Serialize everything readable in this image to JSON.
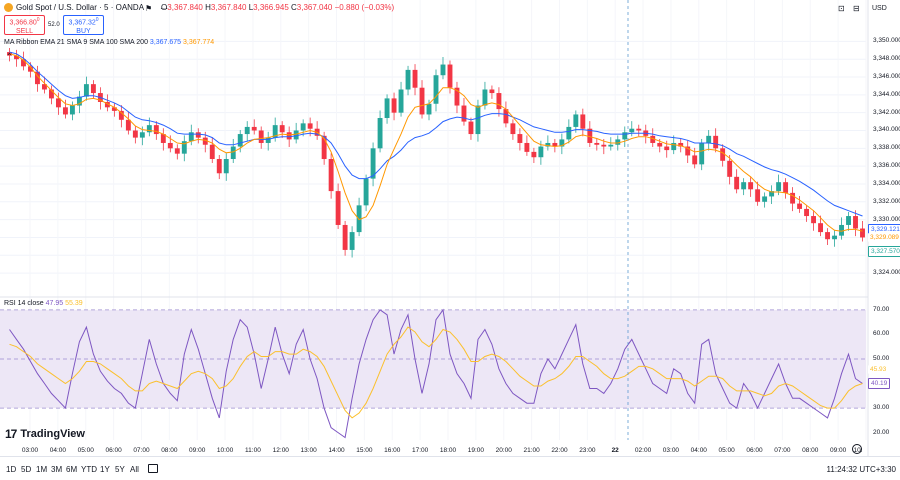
{
  "header": {
    "symbol": "Gold Spot / U.S. Dollar · 5 · OANDA",
    "ohlc_o_label": "O",
    "ohlc_o": "3,367.840",
    "ohlc_h_label": "H",
    "ohlc_h": "3,367.840",
    "ohlc_l_label": "L",
    "ohlc_l": "3,366.945",
    "ohlc_c_label": "C",
    "ohlc_c": "3,367.040",
    "change": "−0.880 (−0.03%)",
    "sell_price": "3,366.80",
    "sell_sup": "0",
    "sell_label": "SELL",
    "buy_price": "3,367.32",
    "buy_sup": "0",
    "buy_label": "BUY",
    "spread": "52.0",
    "currency": "USD"
  },
  "indicators": {
    "ma_label": "MA Ribbon EMA 21 SMA 9 SMA 100 SMA 200",
    "ma_val1": "3,367.675",
    "ma_val2": "3,367.774",
    "rsi_label": "RSI 14 close",
    "rsi_val1": "47.95",
    "rsi_val2": "55.39"
  },
  "branding": {
    "logo_text": "TradingView"
  },
  "bottom_bar": {
    "timeframes": [
      "1D",
      "5D",
      "1M",
      "3M",
      "6M",
      "YTD",
      "1Y",
      "5Y",
      "All"
    ],
    "clock": "11:24:32 UTC+3:30"
  },
  "price_tags": {
    "blue_tag": "3,329.121",
    "orange_tag": "3,329.089",
    "current_tag": "3,327.570",
    "rsi_tag1": "45.93",
    "rsi_tag2": "40.19"
  },
  "colors": {
    "up": "#26a69a",
    "down": "#f23645",
    "ema": "#2962ff",
    "sma": "#ff9800",
    "rsi": "#7e57c2",
    "rsi_ma": "#fbc02d",
    "rsi_band": "#ede7f6"
  },
  "chart_data": {
    "type": "candlestick",
    "title": "Gold Spot / U.S. Dollar · 5 · OANDA",
    "xlabel": "",
    "ylabel": "",
    "x_ticks": [
      "03:00",
      "04:00",
      "05:00",
      "06:00",
      "07:00",
      "08:00",
      "09:00",
      "10:00",
      "11:00",
      "12:00",
      "13:00",
      "14:00",
      "15:00",
      "16:00",
      "17:00",
      "18:00",
      "19:00",
      "20:00",
      "21:00",
      "22:00",
      "23:00",
      "22",
      "02:00",
      "03:00",
      "04:00",
      "05:00",
      "06:00",
      "07:00",
      "08:00",
      "09:00",
      "10:"
    ],
    "y_ticks": [
      "3,350.000",
      "3,348.000",
      "3,346.000",
      "3,344.000",
      "3,342.000",
      "3,340.000",
      "3,338.000",
      "3,336.000",
      "3,334.000",
      "3,332.000",
      "3,330.000",
      "3,328.000",
      "3,326.000",
      "3,324.000"
    ],
    "ylim": [
      3323,
      3351.5
    ],
    "rsi_ticks": [
      "70.00",
      "60.00",
      "50.00",
      "40.00",
      "30.00",
      "20.00"
    ],
    "rsi_ylim": [
      17,
      72
    ],
    "rsi_band": [
      30,
      70
    ],
    "price_series": [
      3348.4,
      3348.0,
      3347.2,
      3346.6,
      3345.2,
      3344.6,
      3343.6,
      3342.6,
      3341.8,
      3342.8,
      3343.8,
      3345.2,
      3344.2,
      3343.2,
      3342.6,
      3342.2,
      3341.2,
      3340.0,
      3339.2,
      3339.8,
      3340.6,
      3339.6,
      3338.6,
      3338.0,
      3337.4,
      3338.8,
      3339.8,
      3339.2,
      3338.4,
      3336.8,
      3335.2,
      3336.8,
      3338.2,
      3339.6,
      3340.4,
      3340.0,
      3338.6,
      3339.2,
      3340.6,
      3339.8,
      3339.0,
      3340.0,
      3340.8,
      3340.2,
      3339.4,
      3336.8,
      3333.2,
      3329.4,
      3326.6,
      3328.6,
      3331.6,
      3334.6,
      3338.0,
      3341.4,
      3343.6,
      3342.0,
      3344.6,
      3346.8,
      3344.8,
      3341.8,
      3343.0,
      3346.2,
      3347.4,
      3344.8,
      3342.8,
      3341.0,
      3339.6,
      3342.8,
      3344.6,
      3344.2,
      3342.4,
      3340.8,
      3339.6,
      3338.6,
      3337.6,
      3337.0,
      3338.2,
      3338.6,
      3338.2,
      3339.0,
      3340.4,
      3341.8,
      3340.2,
      3338.6,
      3338.4,
      3338.2,
      3338.4,
      3339.0,
      3339.8,
      3340.2,
      3340.0,
      3339.4,
      3338.6,
      3338.2,
      3337.8,
      3338.6,
      3338.2,
      3337.2,
      3336.2,
      3338.6,
      3339.4,
      3338.0,
      3336.6,
      3334.8,
      3333.4,
      3334.2,
      3333.4,
      3332.0,
      3332.6,
      3333.2,
      3334.2,
      3333.0,
      3331.8,
      3331.2,
      3330.4,
      3329.6,
      3328.6,
      3327.8,
      3328.2,
      3329.4,
      3330.4,
      3329.0,
      3328.0
    ],
    "ema_series": [
      3348.8,
      3348.6,
      3348.1,
      3347.4,
      3346.6,
      3345.9,
      3345.2,
      3344.5,
      3343.9,
      3343.6,
      3343.7,
      3343.9,
      3343.9,
      3343.7,
      3343.4,
      3343.1,
      3342.7,
      3342.1,
      3341.5,
      3341.2,
      3341.1,
      3340.9,
      3340.6,
      3340.2,
      3339.7,
      3339.6,
      3339.6,
      3339.6,
      3339.5,
      3339.2,
      3338.6,
      3338.4,
      3338.4,
      3338.6,
      3338.8,
      3339.0,
      3339.0,
      3339.0,
      3339.2,
      3339.3,
      3339.3,
      3339.4,
      3339.6,
      3339.7,
      3339.6,
      3339.3,
      3338.6,
      3337.4,
      3336.0,
      3335.0,
      3334.6,
      3334.6,
      3334.9,
      3335.7,
      3336.6,
      3337.1,
      3337.8,
      3338.7,
      3339.2,
      3339.4,
      3339.7,
      3340.3,
      3341.0,
      3341.3,
      3341.5,
      3341.4,
      3341.2,
      3341.4,
      3341.7,
      3341.9,
      3341.9,
      3341.8,
      3341.5,
      3341.2,
      3340.8,
      3340.4,
      3340.2,
      3340.0,
      3339.8,
      3339.8,
      3339.9,
      3340.1,
      3340.1,
      3340.0,
      3339.9,
      3339.7,
      3339.6,
      3339.6,
      3339.6,
      3339.7,
      3339.7,
      3339.7,
      3339.6,
      3339.4,
      3339.3,
      3339.2,
      3339.1,
      3338.9,
      3338.6,
      3338.6,
      3338.6,
      3338.5,
      3338.3,
      3337.9,
      3337.4,
      3337.1,
      3336.7,
      3336.3,
      3335.9,
      3335.6,
      3335.4,
      3335.1,
      3334.7,
      3334.3,
      3333.8,
      3333.3,
      3332.7,
      3332.1,
      3331.6,
      3331.3,
      3331.0,
      3330.7,
      3330.4
    ],
    "sma_series": [
      3348.6,
      3348.4,
      3347.9,
      3347.1,
      3346.1,
      3345.3,
      3344.5,
      3343.7,
      3343.0,
      3342.8,
      3343.0,
      3343.5,
      3343.6,
      3343.4,
      3343.0,
      3342.6,
      3342.0,
      3341.3,
      3340.5,
      3340.1,
      3340.0,
      3339.9,
      3339.6,
      3339.1,
      3338.6,
      3338.5,
      3338.8,
      3339.0,
      3338.9,
      3338.6,
      3337.9,
      3337.5,
      3337.6,
      3338.0,
      3338.6,
      3339.0,
      3339.1,
      3339.2,
      3339.4,
      3339.6,
      3339.5,
      3339.6,
      3339.8,
      3340.0,
      3339.8,
      3339.1,
      3337.6,
      3335.4,
      3333.0,
      3331.0,
      3330.0,
      3330.3,
      3331.6,
      3333.8,
      3336.2,
      3337.9,
      3339.6,
      3341.5,
      3342.6,
      3342.8,
      3343.0,
      3343.8,
      3344.8,
      3344.8,
      3344.5,
      3343.9,
      3342.9,
      3342.6,
      3342.9,
      3343.1,
      3342.9,
      3342.4,
      3341.5,
      3340.6,
      3339.7,
      3338.8,
      3338.4,
      3338.3,
      3338.2,
      3338.3,
      3338.7,
      3339.3,
      3339.5,
      3339.3,
      3339.1,
      3338.8,
      3338.6,
      3338.6,
      3338.8,
      3339.1,
      3339.3,
      3339.3,
      3339.1,
      3338.8,
      3338.5,
      3338.4,
      3338.3,
      3338.0,
      3337.6,
      3337.7,
      3337.9,
      3337.8,
      3337.5,
      3336.9,
      3336.1,
      3335.4,
      3334.8,
      3334.0,
      3333.4,
      3333.1,
      3333.1,
      3333.0,
      3332.7,
      3332.2,
      3331.6,
      3331.0,
      3330.2,
      3329.4,
      3328.8,
      3328.7,
      3328.9,
      3328.9,
      3328.7
    ],
    "rsi_series": [
      62,
      58,
      54,
      49,
      44,
      40,
      36,
      33,
      30,
      44,
      57,
      63,
      52,
      45,
      41,
      38,
      36,
      32,
      30,
      44,
      58,
      48,
      40,
      36,
      33,
      52,
      62,
      54,
      44,
      34,
      26,
      45,
      58,
      66,
      63,
      52,
      38,
      50,
      63,
      52,
      44,
      56,
      62,
      50,
      42,
      30,
      22,
      20,
      18,
      34,
      48,
      58,
      66,
      70,
      68,
      52,
      62,
      68,
      50,
      36,
      48,
      66,
      70,
      52,
      44,
      40,
      34,
      58,
      62,
      56,
      46,
      40,
      36,
      34,
      32,
      32,
      44,
      50,
      46,
      52,
      58,
      64,
      48,
      38,
      38,
      36,
      40,
      46,
      54,
      58,
      52,
      46,
      40,
      38,
      36,
      46,
      44,
      36,
      32,
      56,
      58,
      44,
      38,
      32,
      30,
      40,
      36,
      30,
      36,
      42,
      48,
      40,
      34,
      34,
      32,
      30,
      28,
      26,
      34,
      44,
      52,
      42,
      40
    ],
    "rsi_ma_series": [
      56,
      55,
      53,
      51,
      48,
      46,
      44,
      42,
      40,
      42,
      45,
      49,
      49,
      48,
      46,
      44,
      42,
      39,
      37,
      37,
      40,
      41,
      40,
      39,
      38,
      41,
      44,
      45,
      44,
      42,
      38,
      39,
      42,
      47,
      51,
      53,
      51,
      51,
      53,
      53,
      52,
      52,
      54,
      53,
      51,
      47,
      41,
      35,
      29,
      26,
      28,
      32,
      38,
      45,
      52,
      56,
      59,
      63,
      61,
      57,
      55,
      58,
      62,
      61,
      58,
      54,
      49,
      49,
      51,
      52,
      51,
      49,
      46,
      43,
      41,
      39,
      39,
      41,
      42,
      44,
      47,
      51,
      51,
      49,
      47,
      44,
      42,
      42,
      43,
      45,
      47,
      47,
      46,
      44,
      42,
      42,
      42,
      41,
      39,
      41,
      43,
      43,
      42,
      39,
      37,
      37,
      37,
      36,
      35,
      36,
      39,
      40,
      39,
      37,
      35,
      33,
      31,
      30,
      30,
      33,
      37,
      39,
      40
    ]
  }
}
